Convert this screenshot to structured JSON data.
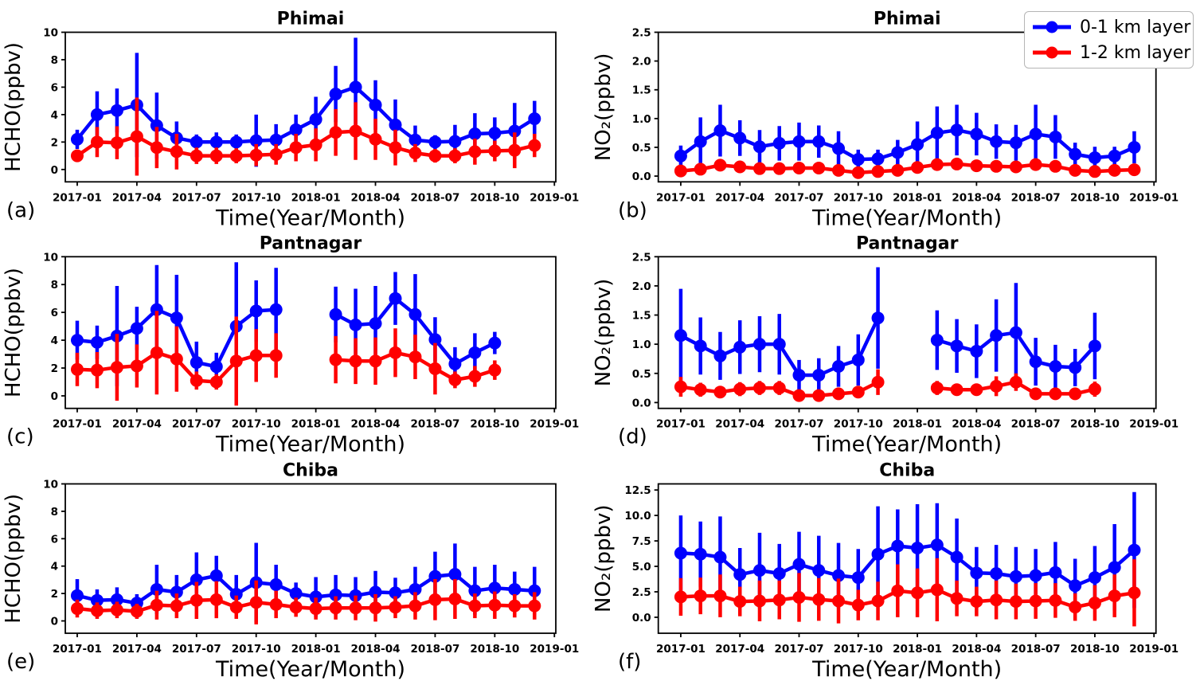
{
  "figure": {
    "background": "#ffffff",
    "xlabel": "Time(Year/Month)",
    "x_tick_months": [
      0,
      3,
      6,
      9,
      12,
      15,
      18,
      21,
      24
    ],
    "x_tick_labels": [
      "2017-01",
      "2017-04",
      "2017-07",
      "2017-10",
      "2018-01",
      "2018-04",
      "2018-07",
      "2018-10",
      "2019-01"
    ],
    "legend": {
      "entries": [
        {
          "label": "0-1 km layer",
          "color": "#0000ff",
          "icon": "thick-line-with-circle-marker"
        },
        {
          "label": "1-2 km layer",
          "color": "#ff0000",
          "icon": "thick-line-with-circle-marker"
        }
      ]
    }
  },
  "chart_data": [
    {
      "id": "a",
      "type": "line",
      "panel_label": "(a)",
      "title": "Phimai",
      "ylabel": "HCHO(ppbv)",
      "xlabel": "Time(Year/Month)",
      "yticks": [
        0,
        2,
        4,
        6,
        8,
        10
      ],
      "ytick_labels": [
        "0",
        "2",
        "4",
        "6",
        "8",
        "10"
      ],
      "ylim": [
        -0.9,
        10.0
      ],
      "months": [
        0,
        1,
        2,
        3,
        4,
        5,
        6,
        7,
        8,
        9,
        10,
        11,
        12,
        13,
        14,
        15,
        16,
        17,
        18,
        19,
        20,
        21,
        22,
        23
      ],
      "series": [
        {
          "name": "0-1 km layer",
          "color": "#0000ff",
          "values": [
            2.2,
            4.0,
            4.3,
            4.7,
            3.2,
            2.3,
            2.0,
            2.0,
            2.0,
            2.1,
            2.15,
            2.9,
            3.65,
            5.5,
            6.0,
            4.7,
            3.25,
            2.15,
            2.0,
            2.05,
            2.6,
            2.65,
            2.8,
            3.7
          ],
          "err": [
            0.7,
            1.7,
            1.6,
            3.8,
            2.4,
            1.2,
            0.55,
            0.7,
            0.55,
            1.9,
            1.15,
            1.1,
            1.65,
            2.05,
            3.6,
            1.8,
            1.85,
            1.05,
            0.5,
            1.2,
            1.5,
            1.15,
            2.05,
            1.3
          ]
        },
        {
          "name": "1-2 km layer",
          "color": "#ff0000",
          "values": [
            1.0,
            2.0,
            1.95,
            2.4,
            1.6,
            1.3,
            1.0,
            1.0,
            1.0,
            1.05,
            1.1,
            1.6,
            1.8,
            2.7,
            2.8,
            2.2,
            1.6,
            1.2,
            1.0,
            1.0,
            1.3,
            1.35,
            1.4,
            1.75
          ],
          "err": [
            0.45,
            1.1,
            1.2,
            2.85,
            1.5,
            1.3,
            0.6,
            0.6,
            0.55,
            0.8,
            0.75,
            1.0,
            1.2,
            1.7,
            2.1,
            1.5,
            1.3,
            0.65,
            0.5,
            0.55,
            0.95,
            0.75,
            1.3,
            0.85
          ]
        }
      ]
    },
    {
      "id": "b",
      "type": "line",
      "panel_label": "(b)",
      "title": "Phimai",
      "ylabel": "NO₂(ppbv)",
      "xlabel": "Time(Year/Month)",
      "yticks": [
        0.0,
        0.5,
        1.0,
        1.5,
        2.0,
        2.5
      ],
      "ytick_labels": [
        "0.0",
        "0.5",
        "1.0",
        "1.5",
        "2.0",
        "2.5"
      ],
      "ylim": [
        -0.1,
        2.5
      ],
      "months": [
        0,
        1,
        2,
        3,
        4,
        5,
        6,
        7,
        8,
        9,
        10,
        11,
        12,
        13,
        14,
        15,
        16,
        17,
        18,
        19,
        20,
        21,
        22,
        23
      ],
      "series": [
        {
          "name": "0-1 km layer",
          "color": "#0000ff",
          "values": [
            0.35,
            0.6,
            0.79,
            0.66,
            0.51,
            0.57,
            0.6,
            0.6,
            0.48,
            0.29,
            0.3,
            0.41,
            0.55,
            0.75,
            0.8,
            0.73,
            0.6,
            0.58,
            0.73,
            0.68,
            0.38,
            0.32,
            0.35,
            0.5
          ],
          "err": [
            0.18,
            0.42,
            0.45,
            0.31,
            0.29,
            0.3,
            0.33,
            0.28,
            0.3,
            0.17,
            0.16,
            0.22,
            0.4,
            0.46,
            0.44,
            0.37,
            0.3,
            0.31,
            0.51,
            0.38,
            0.2,
            0.19,
            0.16,
            0.28
          ]
        },
        {
          "name": "1-2 km layer",
          "color": "#ff0000",
          "values": [
            0.09,
            0.12,
            0.19,
            0.16,
            0.13,
            0.13,
            0.14,
            0.14,
            0.1,
            0.06,
            0.08,
            0.1,
            0.15,
            0.2,
            0.21,
            0.18,
            0.17,
            0.16,
            0.2,
            0.17,
            0.1,
            0.08,
            0.1,
            0.11
          ],
          "err": [
            0.06,
            0.07,
            0.09,
            0.08,
            0.07,
            0.07,
            0.08,
            0.08,
            0.07,
            0.05,
            0.05,
            0.06,
            0.08,
            0.08,
            0.09,
            0.08,
            0.08,
            0.08,
            0.09,
            0.08,
            0.07,
            0.06,
            0.06,
            0.07
          ]
        }
      ]
    },
    {
      "id": "c",
      "type": "line",
      "panel_label": "(c)",
      "title": "Pantnagar",
      "ylabel": "HCHO(ppbv)",
      "xlabel": "Time(Year/Month)",
      "yticks": [
        0,
        2,
        4,
        6,
        8,
        10
      ],
      "ytick_labels": [
        "0",
        "2",
        "4",
        "6",
        "8",
        "10"
      ],
      "ylim": [
        -0.9,
        10.0
      ],
      "months": [
        0,
        1,
        2,
        3,
        4,
        5,
        6,
        7,
        8,
        9,
        10,
        13,
        14,
        15,
        16,
        17,
        18,
        19,
        20,
        21
      ],
      "series": [
        {
          "name": "0-1 km layer",
          "color": "#0000ff",
          "values": [
            4.0,
            3.85,
            4.3,
            4.85,
            6.2,
            5.6,
            2.4,
            2.1,
            5.0,
            6.1,
            6.2,
            5.85,
            5.1,
            5.2,
            7.0,
            5.85,
            4.05,
            2.3,
            3.1,
            3.8
          ],
          "err": [
            1.4,
            1.2,
            3.6,
            1.55,
            3.2,
            3.1,
            1.5,
            1.0,
            4.6,
            2.2,
            3.0,
            2.0,
            2.6,
            2.7,
            1.9,
            2.9,
            1.6,
            1.2,
            1.4,
            0.8
          ]
        },
        {
          "name": "1-2 km layer",
          "color": "#ff0000",
          "values": [
            1.9,
            1.85,
            2.05,
            2.15,
            3.1,
            2.65,
            1.1,
            1.0,
            2.5,
            2.9,
            2.9,
            2.6,
            2.5,
            2.5,
            3.1,
            2.8,
            1.95,
            1.15,
            1.4,
            1.85
          ],
          "err": [
            1.2,
            1.3,
            2.4,
            1.55,
            3.0,
            2.35,
            0.65,
            0.55,
            3.2,
            1.9,
            1.6,
            1.7,
            1.65,
            1.7,
            1.75,
            1.6,
            1.85,
            0.6,
            0.75,
            0.7
          ]
        }
      ]
    },
    {
      "id": "d",
      "type": "line",
      "panel_label": "(d)",
      "title": "Pantnagar",
      "ylabel": "NO₂(ppbv)",
      "xlabel": "Time(Year/Month)",
      "yticks": [
        0.0,
        0.5,
        1.0,
        1.5,
        2.0,
        2.5
      ],
      "ytick_labels": [
        "0.0",
        "0.5",
        "1.0",
        "1.5",
        "2.0",
        "2.5"
      ],
      "ylim": [
        -0.1,
        2.5
      ],
      "months": [
        0,
        1,
        2,
        3,
        4,
        5,
        6,
        7,
        8,
        9,
        10,
        13,
        14,
        15,
        16,
        17,
        18,
        19,
        20,
        21
      ],
      "series": [
        {
          "name": "0-1 km layer",
          "color": "#0000ff",
          "values": [
            1.15,
            0.97,
            0.8,
            0.95,
            1.0,
            1.0,
            0.47,
            0.47,
            0.62,
            0.73,
            1.45,
            1.07,
            0.97,
            0.88,
            1.15,
            1.2,
            0.7,
            0.62,
            0.6,
            0.97
          ],
          "err": [
            0.8,
            0.49,
            0.41,
            0.46,
            0.48,
            0.52,
            0.26,
            0.29,
            0.35,
            0.44,
            0.87,
            0.51,
            0.46,
            0.46,
            0.62,
            0.85,
            0.41,
            0.37,
            0.32,
            0.57
          ]
        },
        {
          "name": "1-2 km layer",
          "color": "#ff0000",
          "values": [
            0.27,
            0.22,
            0.18,
            0.23,
            0.25,
            0.25,
            0.12,
            0.12,
            0.15,
            0.18,
            0.35,
            0.25,
            0.22,
            0.22,
            0.28,
            0.35,
            0.15,
            0.15,
            0.15,
            0.23
          ],
          "err": [
            0.17,
            0.12,
            0.1,
            0.12,
            0.12,
            0.12,
            0.07,
            0.07,
            0.08,
            0.1,
            0.22,
            0.12,
            0.1,
            0.1,
            0.17,
            0.15,
            0.08,
            0.08,
            0.08,
            0.13
          ]
        }
      ]
    },
    {
      "id": "e",
      "type": "line",
      "panel_label": "(e)",
      "title": "Chiba",
      "ylabel": "HCHO(ppbv)",
      "xlabel": "Time(Year/Month)",
      "yticks": [
        0,
        2,
        4,
        6,
        8,
        10
      ],
      "ytick_labels": [
        "0",
        "2",
        "4",
        "6",
        "8",
        "10"
      ],
      "ylim": [
        -0.9,
        10.0
      ],
      "months": [
        0,
        1,
        2,
        3,
        4,
        5,
        6,
        7,
        8,
        9,
        10,
        11,
        12,
        13,
        14,
        15,
        16,
        17,
        18,
        19,
        20,
        21,
        22,
        23
      ],
      "series": [
        {
          "name": "0-1 km layer",
          "color": "#0000ff",
          "values": [
            1.85,
            1.5,
            1.55,
            1.3,
            2.3,
            2.1,
            3.0,
            3.3,
            1.95,
            2.8,
            2.65,
            2.0,
            1.75,
            1.9,
            1.85,
            2.1,
            2.05,
            2.3,
            3.25,
            3.4,
            2.2,
            2.4,
            2.3,
            2.2
          ],
          "err": [
            1.2,
            0.8,
            0.9,
            0.65,
            1.8,
            1.25,
            2.0,
            1.45,
            1.4,
            2.9,
            1.45,
            0.8,
            1.45,
            1.45,
            1.35,
            1.55,
            1.1,
            1.65,
            1.8,
            2.25,
            1.75,
            1.7,
            1.3,
            1.75
          ]
        },
        {
          "name": "1-2 km layer",
          "color": "#ff0000",
          "values": [
            0.9,
            0.75,
            0.8,
            0.7,
            1.15,
            1.1,
            1.5,
            1.55,
            1.0,
            1.35,
            1.2,
            1.0,
            0.9,
            0.95,
            0.95,
            0.95,
            1.0,
            1.1,
            1.55,
            1.6,
            1.1,
            1.15,
            1.1,
            1.1
          ],
          "err": [
            0.65,
            0.6,
            0.6,
            0.55,
            1.05,
            0.9,
            1.35,
            1.35,
            0.85,
            1.6,
            1.0,
            0.7,
            0.8,
            0.85,
            0.9,
            1.0,
            0.8,
            1.0,
            1.5,
            1.45,
            0.9,
            1.0,
            0.85,
            1.0
          ]
        }
      ]
    },
    {
      "id": "f",
      "type": "line",
      "panel_label": "(f)",
      "title": "Chiba",
      "ylabel": "NO₂(ppbv)",
      "xlabel": "Time(Year/Month)",
      "yticks": [
        0.0,
        2.5,
        5.0,
        7.5,
        10.0,
        12.5
      ],
      "ytick_labels": [
        "0.0",
        "2.5",
        "5.0",
        "7.5",
        "10.0",
        "12.5"
      ],
      "ylim": [
        -1.57,
        13.1
      ],
      "months": [
        0,
        1,
        2,
        3,
        4,
        5,
        6,
        7,
        8,
        9,
        10,
        11,
        12,
        13,
        14,
        15,
        16,
        17,
        18,
        19,
        20,
        21,
        22,
        23
      ],
      "series": [
        {
          "name": "0-1 km layer",
          "color": "#0000ff",
          "values": [
            6.3,
            6.2,
            5.9,
            4.2,
            4.6,
            4.3,
            5.2,
            4.6,
            4.1,
            3.9,
            6.2,
            7.0,
            6.8,
            7.1,
            5.9,
            4.35,
            4.3,
            4.0,
            4.1,
            4.4,
            3.1,
            3.9,
            4.9,
            6.6
          ],
          "err": [
            3.7,
            3.2,
            4.0,
            2.6,
            3.7,
            2.9,
            3.2,
            3.4,
            3.2,
            2.8,
            4.7,
            3.6,
            4.3,
            4.1,
            3.8,
            2.55,
            2.8,
            2.9,
            2.6,
            3.0,
            2.65,
            3.1,
            4.25,
            5.7
          ]
        },
        {
          "name": "1-2 km layer",
          "color": "#ff0000",
          "values": [
            2.0,
            2.1,
            2.1,
            1.55,
            1.6,
            1.7,
            1.95,
            1.75,
            1.6,
            1.2,
            1.6,
            2.6,
            2.4,
            2.7,
            1.85,
            1.55,
            1.7,
            1.55,
            1.6,
            1.65,
            1.0,
            1.4,
            2.1,
            2.4
          ],
          "err": [
            1.85,
            1.8,
            2.1,
            1.45,
            2.0,
            1.9,
            2.4,
            2.1,
            2.2,
            1.5,
            1.9,
            2.6,
            2.4,
            3.1,
            1.75,
            1.45,
            1.9,
            1.75,
            1.75,
            1.7,
            1.35,
            1.75,
            2.1,
            3.3
          ]
        }
      ]
    }
  ]
}
